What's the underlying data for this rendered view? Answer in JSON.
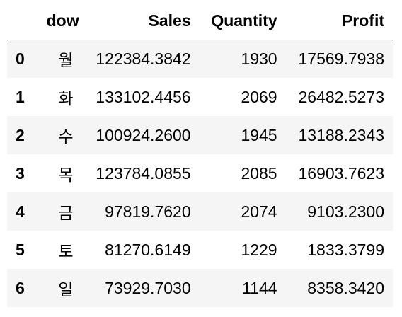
{
  "table": {
    "columns": [
      "",
      "dow",
      "Sales",
      "Quantity",
      "Profit"
    ],
    "rows": [
      {
        "index": "0",
        "dow": "월",
        "sales": "122384.3842",
        "quantity": "1930",
        "profit": "17569.7938"
      },
      {
        "index": "1",
        "dow": "화",
        "sales": "133102.4456",
        "quantity": "2069",
        "profit": "26482.5273"
      },
      {
        "index": "2",
        "dow": "수",
        "sales": "100924.2600",
        "quantity": "1945",
        "profit": "13188.2343"
      },
      {
        "index": "3",
        "dow": "목",
        "sales": "123784.0855",
        "quantity": "2085",
        "profit": "16903.7623"
      },
      {
        "index": "4",
        "dow": "금",
        "sales": "97819.7620",
        "quantity": "2074",
        "profit": "9103.2300"
      },
      {
        "index": "5",
        "dow": "토",
        "sales": "81270.6149",
        "quantity": "1229",
        "profit": "1833.3799"
      },
      {
        "index": "6",
        "dow": "일",
        "sales": "73929.7030",
        "quantity": "1144",
        "profit": "8358.3420"
      }
    ]
  }
}
